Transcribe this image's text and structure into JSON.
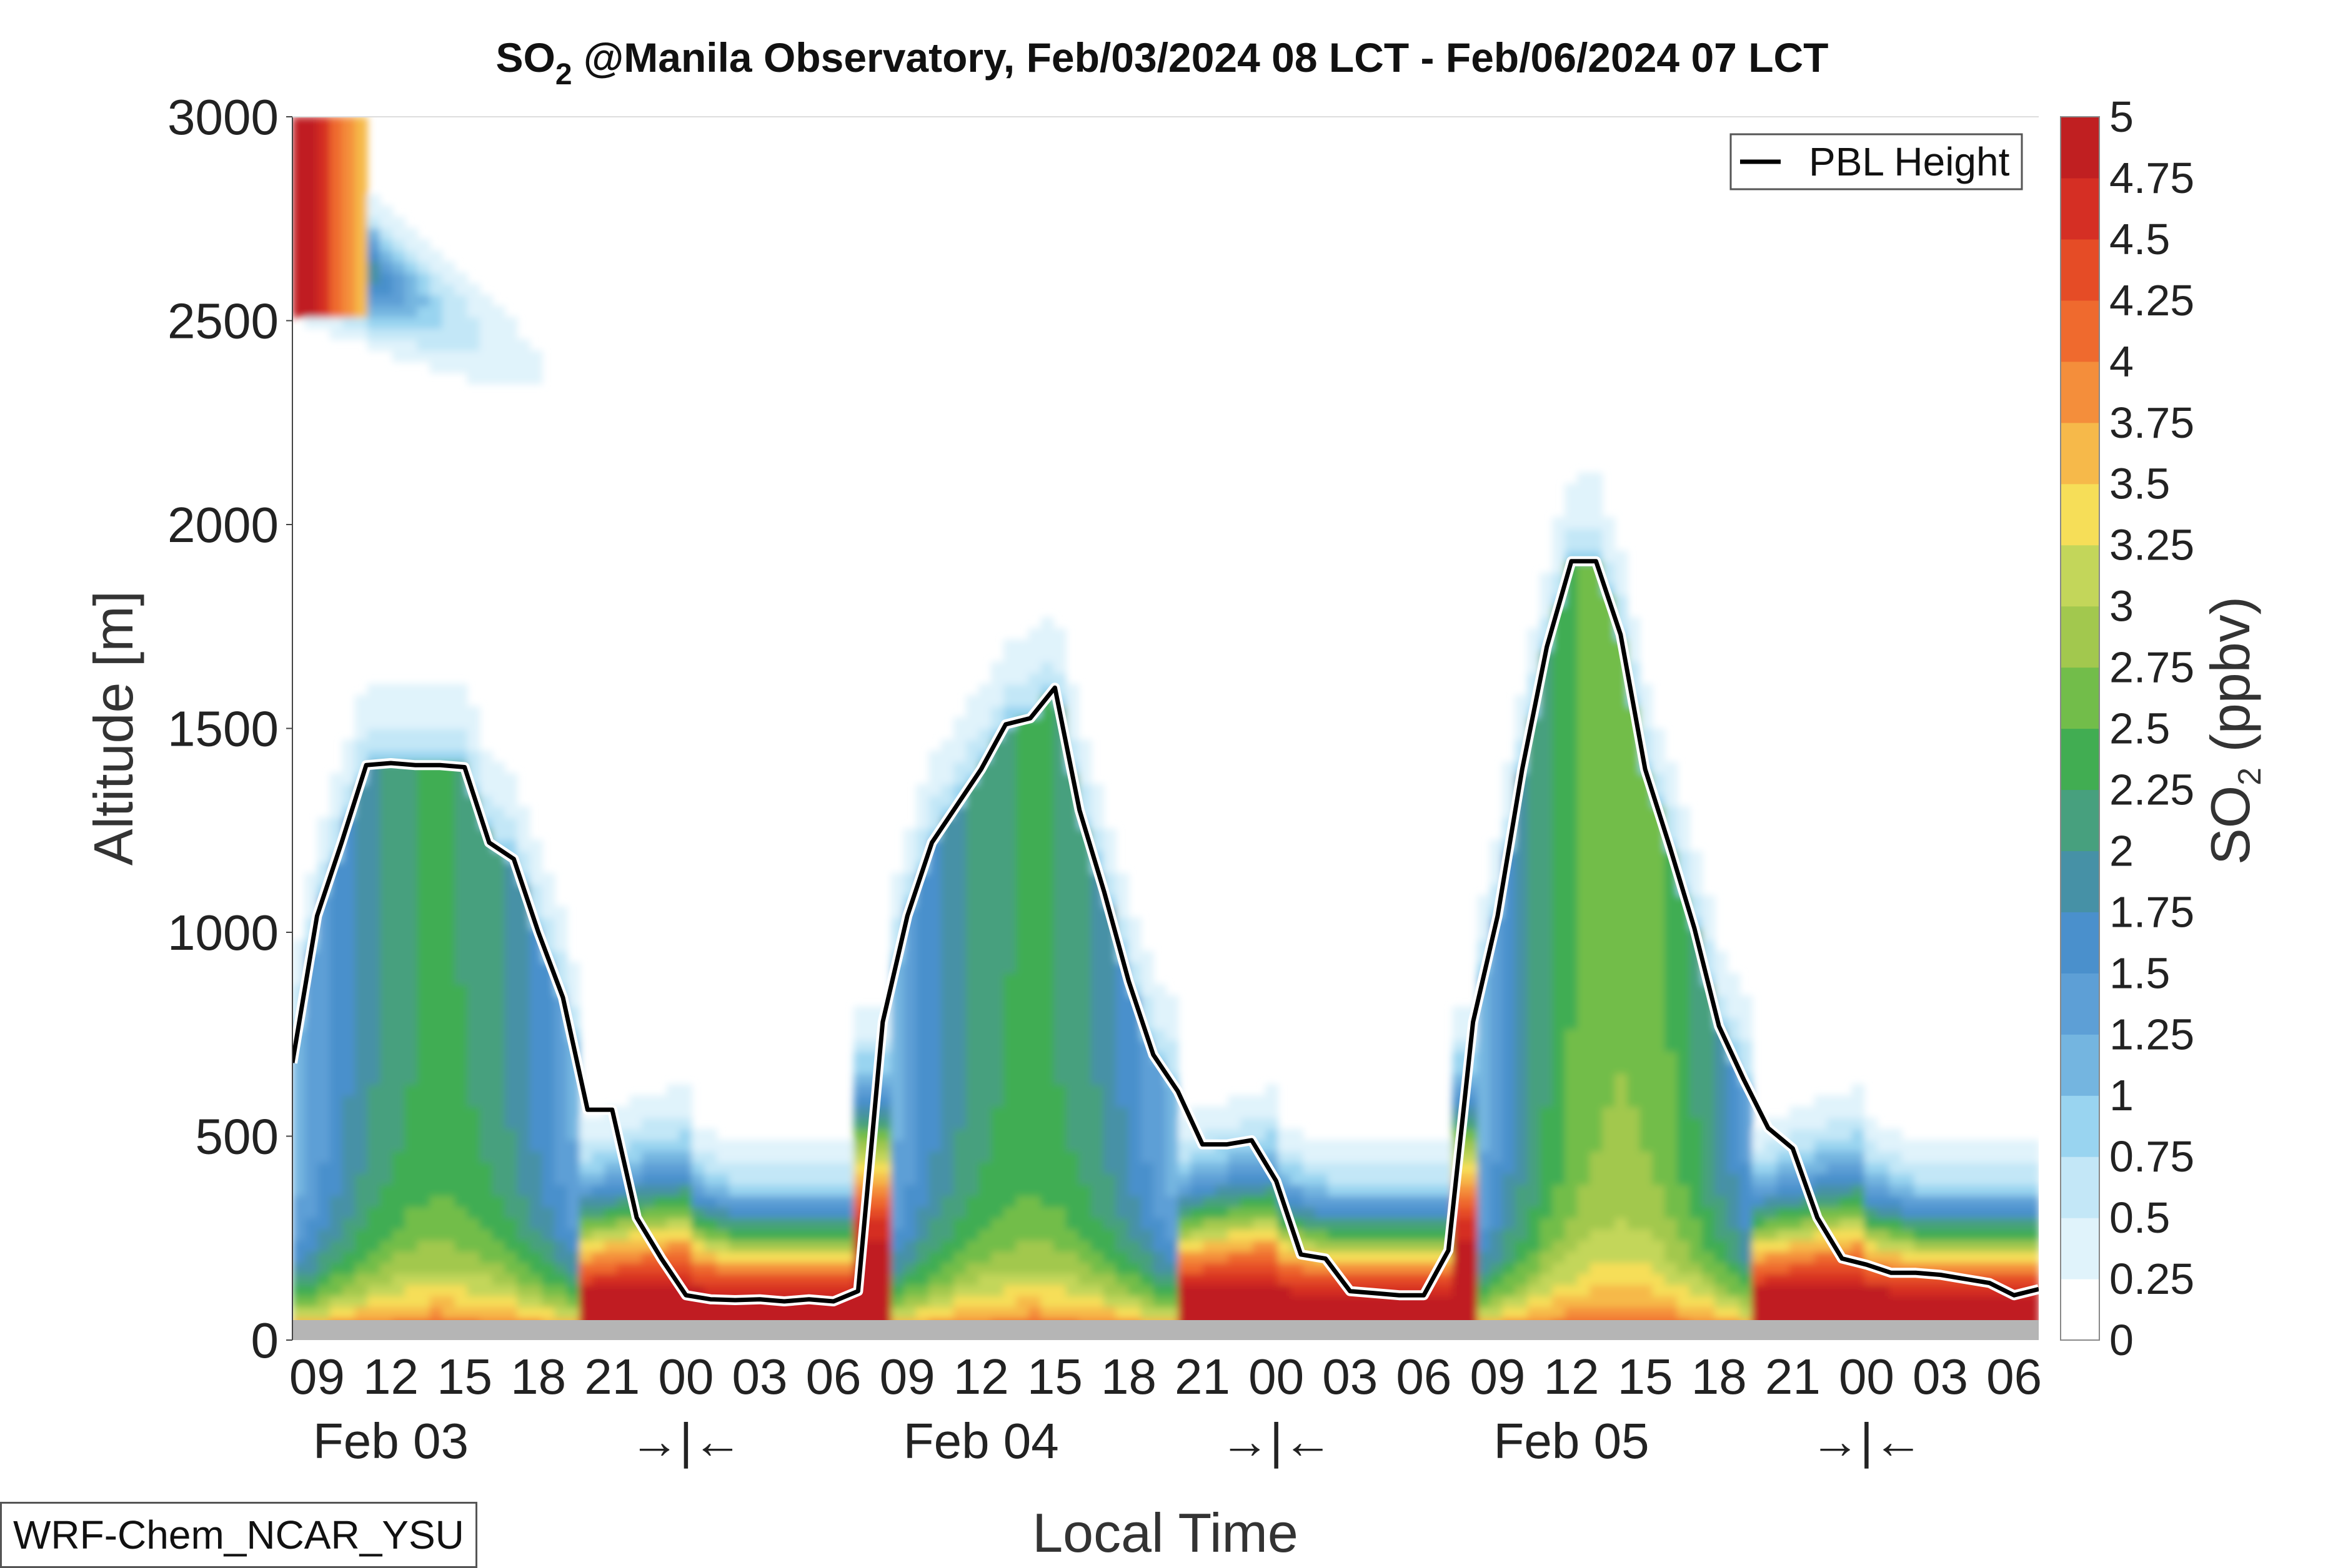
{
  "title": {
    "species_main": "SO",
    "species_sub": "2",
    "rest": " @Manila Observatory, Feb/03/2024 08 LCT - Feb/06/2024 07 LCT"
  },
  "model_label": "WRF-Chem_NCAR_YSU",
  "chart_data": {
    "type": "heatmap",
    "description_kind": "time-height filled contour",
    "xlabel": "Local Time",
    "ylabel": "Altitude [m]",
    "ylim": [
      0,
      3000
    ],
    "yticks": [
      "0",
      "500",
      "1000",
      "1500",
      "2000",
      "2500",
      "3000"
    ],
    "xtick_labels": [
      "09",
      "12",
      "15",
      "18",
      "21",
      "00",
      "03",
      "06",
      "09",
      "12",
      "15",
      "18",
      "21",
      "00",
      "03",
      "06",
      "09",
      "12",
      "15",
      "18",
      "21",
      "00",
      "03",
      "06"
    ],
    "date_labels": [
      "Feb 03",
      "Feb 04",
      "Feb 05"
    ],
    "day_break_marker": "→|←",
    "colorbar": {
      "label_main": "SO",
      "label_sub": "2",
      "label_rest": " (ppbv)",
      "ticks": [
        "0",
        "0.25",
        "0.5",
        "0.75",
        "1",
        "1.25",
        "1.5",
        "1.75",
        "2",
        "2.25",
        "2.5",
        "2.75",
        "3",
        "3.25",
        "3.5",
        "3.75",
        "4",
        "4.25",
        "4.5",
        "4.75",
        "5"
      ],
      "colors": [
        "#ffffff",
        "#e0f3fb",
        "#c3e7f7",
        "#99d4f0",
        "#74b5e0",
        "#5d9fd6",
        "#4a90cc",
        "#4691a6",
        "#47a07e",
        "#41ad52",
        "#72bd4a",
        "#a2c84e",
        "#c3d65a",
        "#f6de58",
        "#f6b94a",
        "#f48e3b",
        "#ef6a2e",
        "#e54c26",
        "#d52f24",
        "#c01f21",
        "#951a1c"
      ]
    },
    "legend": {
      "entries": [
        "PBL Height"
      ],
      "placement": "top-right"
    },
    "pbl_height": {
      "hours": [
        0,
        1,
        2,
        3,
        4,
        5,
        6,
        7,
        8,
        9,
        10,
        11,
        12,
        13,
        14,
        15,
        16,
        17,
        18,
        19,
        20,
        21,
        22,
        23,
        24,
        25,
        26,
        27,
        28,
        29,
        30,
        31,
        32,
        33,
        34,
        35,
        36,
        37,
        38,
        39,
        40,
        41,
        42,
        43,
        44,
        45,
        46,
        47,
        48,
        49,
        50,
        51,
        52,
        53,
        54,
        55,
        56,
        57,
        58,
        59,
        60,
        61,
        62,
        63,
        64,
        65,
        66,
        67,
        68,
        69,
        70,
        71
      ],
      "values": [
        680,
        1040,
        1220,
        1410,
        1415,
        1410,
        1410,
        1405,
        1220,
        1180,
        1000,
        840,
        565,
        565,
        300,
        200,
        110,
        100,
        98,
        100,
        95,
        100,
        95,
        120,
        780,
        1040,
        1220,
        1310,
        1400,
        1510,
        1525,
        1600,
        1300,
        1100,
        880,
        700,
        610,
        480,
        480,
        490,
        390,
        210,
        200,
        120,
        115,
        110,
        110,
        220,
        780,
        1040,
        1400,
        1700,
        1910,
        1910,
        1730,
        1400,
        1210,
        1010,
        770,
        640,
        520,
        470,
        300,
        200,
        185,
        165,
        165,
        160,
        150,
        140,
        110,
        125
      ]
    }
  }
}
